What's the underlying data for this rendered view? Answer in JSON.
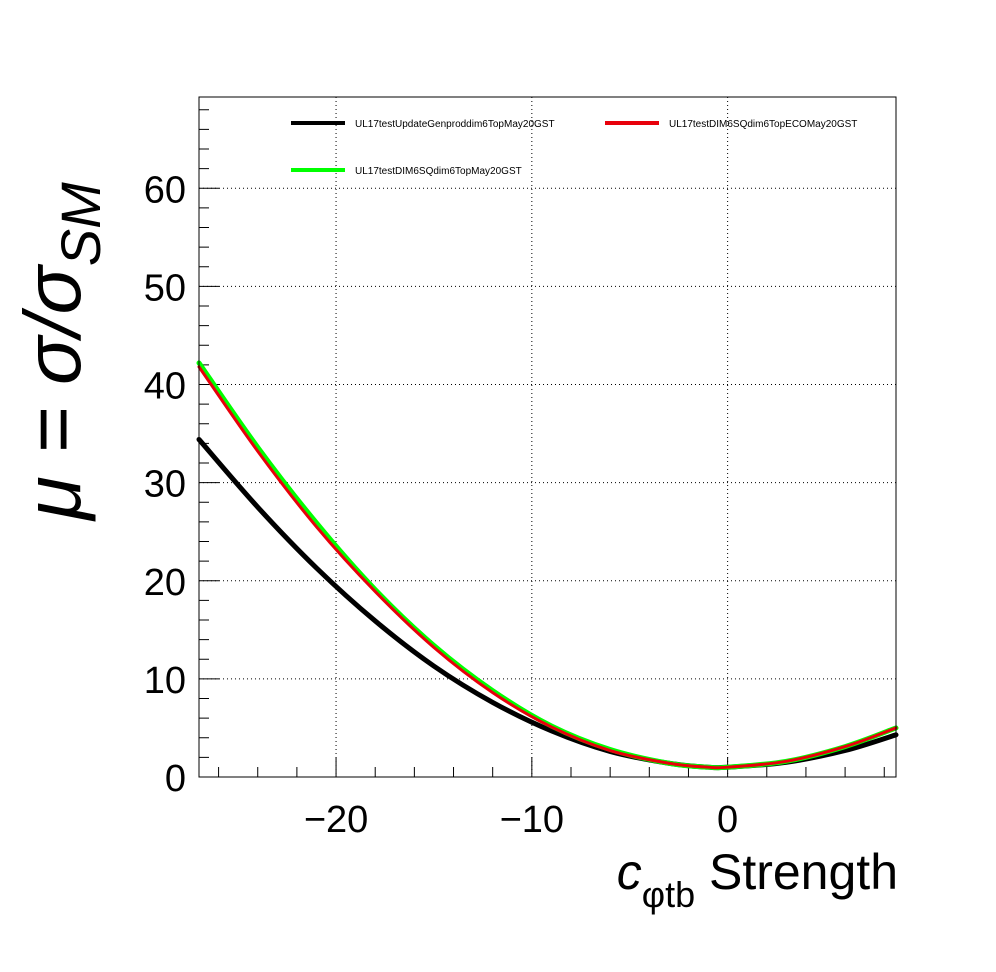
{
  "chart_data": {
    "type": "line",
    "xlabel": {
      "main": "c",
      "subscript": "φtb",
      "suffix": " Strength"
    },
    "ylabel": {
      "prefix": "μ = σ/σ",
      "subscript": "SM"
    },
    "xlim": [
      -27,
      8.6
    ],
    "ylim": [
      0,
      69.3
    ],
    "x_ticks": [
      -20,
      -10,
      0
    ],
    "x_tick_labels": [
      "−20",
      "−10",
      "0"
    ],
    "y_ticks": [
      0,
      10,
      20,
      30,
      40,
      50,
      60
    ],
    "y_tick_labels": [
      "0",
      "10",
      "20",
      "30",
      "40",
      "50",
      "60"
    ],
    "grid": true,
    "legend_placement": "top",
    "series": [
      {
        "name": "UL17testUpdateGenproddim6TopMay20GST",
        "color": "#000000",
        "x": [
          -27,
          -24,
          -21,
          -18,
          -15,
          -12,
          -9,
          -6,
          -3,
          -1,
          0,
          3,
          6,
          8.6
        ],
        "y": [
          34.4,
          27.5,
          21.3,
          15.9,
          11.3,
          7.6,
          4.7,
          2.6,
          1.4,
          1.0,
          1.0,
          1.5,
          2.7,
          4.3
        ]
      },
      {
        "name": "UL17testDIM6SQdim6TopECOMay20GST",
        "color": "#e8000b",
        "x": [
          -27,
          -24,
          -21,
          -18,
          -15,
          -12,
          -9,
          -6,
          -3,
          -1,
          0,
          3,
          6,
          8.6
        ],
        "y": [
          41.8,
          33.2,
          25.5,
          18.9,
          13.2,
          8.6,
          5.1,
          2.7,
          1.4,
          1.0,
          1.0,
          1.6,
          3.1,
          5.0
        ]
      },
      {
        "name": "UL17testDIM6SQdim6TopMay20GST",
        "color": "#00ff00",
        "x": [
          -27,
          -24,
          -21,
          -18,
          -15,
          -12,
          -9,
          -6,
          -3,
          -1,
          0,
          3,
          6,
          8.6
        ],
        "y": [
          42.2,
          33.6,
          25.9,
          19.1,
          13.4,
          8.8,
          5.2,
          2.8,
          1.4,
          1.0,
          1.0,
          1.6,
          3.1,
          5.0
        ]
      }
    ]
  }
}
